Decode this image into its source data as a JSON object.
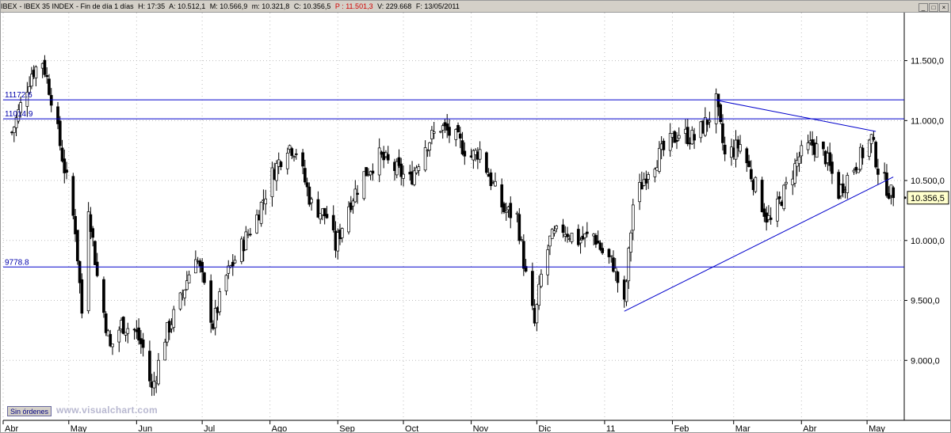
{
  "header": {
    "symbol": "IBEX",
    "name": "IBEX 35 INDEX",
    "period": "Fin de día 1 días",
    "time": "H: 17:35",
    "open": "A: 10.512,1",
    "high": "M: 10.566,9",
    "low": "m: 10.321,8",
    "close": "C: 10.356,5",
    "p_value": "P : 11.501,3",
    "volume": "V: 229.668",
    "date": "F: 13/05/2011"
  },
  "window_buttons": {
    "minimize": "_",
    "maximize": "□",
    "close": "×"
  },
  "order_button_label": "Sin órdenes",
  "watermark": "www.visualchart.com",
  "colors": {
    "candle": "#000000",
    "line": "#0000cc",
    "price_label_bg": "#ffffcc",
    "grid_dots": "#bdbdbd"
  },
  "chart_data": {
    "type": "candlestick",
    "ylim": [
      8500,
      11900
    ],
    "y_ticks": [
      9000,
      9500,
      10000,
      10500,
      11000,
      11500
    ],
    "y_tick_labels": [
      "9.000,0",
      "9.500,0",
      "10.000,0",
      "10.500,0",
      "11.000,0",
      "11.500,0"
    ],
    "month_labels": [
      "Abr",
      "May",
      "Jun",
      "Jul",
      "Ago",
      "Sep",
      "Oct",
      "Nov",
      "Dic",
      "11",
      "Feb",
      "Mar",
      "Abr",
      "May"
    ],
    "last_price_label": "10.356,5",
    "last_price": 10356.5,
    "horizontal_lines": [
      {
        "value": 11172.6,
        "label": "11172.6"
      },
      {
        "value": 11014.9,
        "label": "11014.9"
      },
      {
        "value": 9778.8,
        "label": "9778.8"
      }
    ],
    "trend_lines": [
      {
        "from": [
          "2011-02-21",
          11170
        ],
        "to": [
          "2011-05-05",
          10910
        ]
      },
      {
        "from": [
          "2011-01-10",
          9410
        ],
        "to": [
          "2011-05-13",
          10530
        ]
      }
    ],
    "closes_monthly_anchors": [
      [
        "2010-04-05",
        10900
      ],
      [
        "2010-04-14",
        11400
      ],
      [
        "2010-04-19",
        11500
      ],
      [
        "2010-04-23",
        11200
      ],
      [
        "2010-04-27",
        10800
      ],
      [
        "2010-04-30",
        10500
      ],
      [
        "2010-05-04",
        10100
      ],
      [
        "2010-05-07",
        9400
      ],
      [
        "2010-05-10",
        10300
      ],
      [
        "2010-05-14",
        9700
      ],
      [
        "2010-05-20",
        9100
      ],
      [
        "2010-05-25",
        9300
      ],
      [
        "2010-05-31",
        9250
      ],
      [
        "2010-06-04",
        9100
      ],
      [
        "2010-06-08",
        8750
      ],
      [
        "2010-06-14",
        9200
      ],
      [
        "2010-06-21",
        9500
      ],
      [
        "2010-06-28",
        9900
      ],
      [
        "2010-07-02",
        9600
      ],
      [
        "2010-07-06",
        9300
      ],
      [
        "2010-07-12",
        9700
      ],
      [
        "2010-07-19",
        9950
      ],
      [
        "2010-07-26",
        10200
      ],
      [
        "2010-08-02",
        10550
      ],
      [
        "2010-08-09",
        10800
      ],
      [
        "2010-08-13",
        10750
      ],
      [
        "2010-08-20",
        10300
      ],
      [
        "2010-08-27",
        10200
      ],
      [
        "2010-08-31",
        9950
      ],
      [
        "2010-09-06",
        10300
      ],
      [
        "2010-09-13",
        10550
      ],
      [
        "2010-09-20",
        10700
      ],
      [
        "2010-09-27",
        10600
      ],
      [
        "2010-10-04",
        10500
      ],
      [
        "2010-10-11",
        10800
      ],
      [
        "2010-10-18",
        10950
      ],
      [
        "2010-10-25",
        10850
      ],
      [
        "2010-11-01",
        10700
      ],
      [
        "2010-11-05",
        10750
      ],
      [
        "2010-11-10",
        10500
      ],
      [
        "2010-11-16",
        10250
      ],
      [
        "2010-11-22",
        10200
      ],
      [
        "2010-11-26",
        9700
      ],
      [
        "2010-11-30",
        9300
      ],
      [
        "2010-12-03",
        9700
      ],
      [
        "2010-12-07",
        10000
      ],
      [
        "2010-12-13",
        10100
      ],
      [
        "2010-12-20",
        10000
      ],
      [
        "2010-12-27",
        10050
      ],
      [
        "2010-12-31",
        9900
      ],
      [
        "2011-01-05",
        9800
      ],
      [
        "2011-01-10",
        9450
      ],
      [
        "2011-01-14",
        10300
      ],
      [
        "2011-01-21",
        10600
      ],
      [
        "2011-01-28",
        10750
      ],
      [
        "2011-02-04",
        10900
      ],
      [
        "2011-02-11",
        10850
      ],
      [
        "2011-02-17",
        11000
      ],
      [
        "2011-02-21",
        11150
      ],
      [
        "2011-02-25",
        10700
      ],
      [
        "2011-03-04",
        10800
      ],
      [
        "2011-03-10",
        10500
      ],
      [
        "2011-03-16",
        10200
      ],
      [
        "2011-03-18",
        10150
      ],
      [
        "2011-03-24",
        10400
      ],
      [
        "2011-03-31",
        10700
      ],
      [
        "2011-04-06",
        10800
      ],
      [
        "2011-04-12",
        10700
      ],
      [
        "2011-04-18",
        10400
      ],
      [
        "2011-04-21",
        10500
      ],
      [
        "2011-04-28",
        10700
      ],
      [
        "2011-05-03",
        10850
      ],
      [
        "2011-05-06",
        10600
      ],
      [
        "2011-05-10",
        10450
      ],
      [
        "2011-05-13",
        10356.5
      ]
    ]
  }
}
